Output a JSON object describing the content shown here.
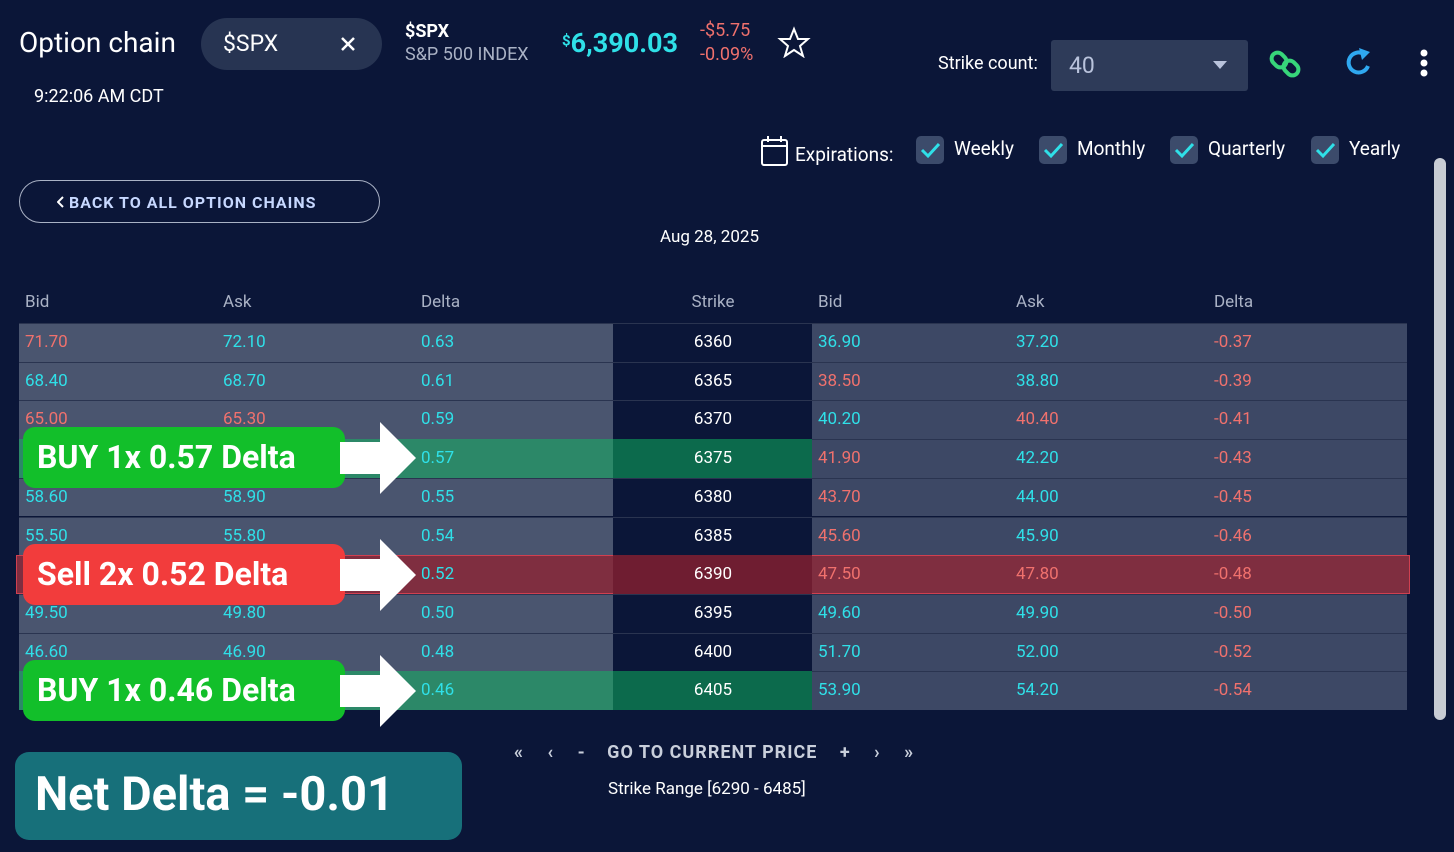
{
  "header": {
    "title": "Option chain",
    "symbol": "$SPX",
    "time": "9:22:06 AM CDT",
    "ticker": "$SPX",
    "name": "S&P 500 INDEX",
    "currency": "$",
    "price": "6,390.03",
    "change": "-$5.75",
    "change_pct": "-0.09%",
    "strike_count_label": "Strike count:",
    "strike_count": "40"
  },
  "expirations": {
    "label": "Expirations:",
    "options": [
      "Weekly",
      "Monthly",
      "Quarterly",
      "Yearly"
    ]
  },
  "back_button": "BACK TO ALL OPTION CHAINS",
  "date": "Aug 28, 2025",
  "table": {
    "columns": [
      "Bid",
      "Ask",
      "Delta",
      "Strike",
      "Bid",
      "Ask",
      "Delta"
    ],
    "rows": [
      {
        "cells": [
          "71.70",
          "72.10",
          "0.63",
          "6360",
          "36.90",
          "37.20",
          "-0.37"
        ],
        "colors": [
          "#f0716d",
          "#2fe0e8",
          "#2fe0e8",
          "#ffffff",
          "#2fe0e8",
          "#2fe0e8",
          "#f0716d"
        ]
      },
      {
        "cells": [
          "68.40",
          "68.70",
          "0.61",
          "6365",
          "38.50",
          "38.80",
          "-0.39"
        ],
        "colors": [
          "#2fe0e8",
          "#2fe0e8",
          "#2fe0e8",
          "#ffffff",
          "#f0716d",
          "#2fe0e8",
          "#f0716d"
        ]
      },
      {
        "cells": [
          "65.00",
          "65.30",
          "0.59",
          "6370",
          "40.20",
          "40.40",
          "-0.41"
        ],
        "colors": [
          "#f0716d",
          "#f0716d",
          "#2fe0e8",
          "#ffffff",
          "#2fe0e8",
          "#f0716d",
          "#f0716d"
        ]
      },
      {
        "cells": [
          null,
          null,
          "0.57",
          "6375",
          "41.90",
          "42.20",
          "-0.43"
        ],
        "colors": [
          "#2fe0e8",
          "#2fe0e8",
          "#2fe0e8",
          "#ffffff",
          "#f0716d",
          "#2fe0e8",
          "#f0716d"
        ],
        "highlight": "buy"
      },
      {
        "cells": [
          "58.60",
          "58.90",
          "0.55",
          "6380",
          "43.70",
          "44.00",
          "-0.45"
        ],
        "colors": [
          "#2fe0e8",
          "#2fe0e8",
          "#2fe0e8",
          "#ffffff",
          "#f0716d",
          "#2fe0e8",
          "#f0716d"
        ]
      },
      {
        "cells": [
          "55.50",
          "55.80",
          "0.54",
          "6385",
          "45.60",
          "45.90",
          "-0.46"
        ],
        "colors": [
          "#2fe0e8",
          "#2fe0e8",
          "#2fe0e8",
          "#ffffff",
          "#f0716d",
          "#2fe0e8",
          "#f0716d"
        ]
      },
      {
        "cells": [
          null,
          null,
          "0.52",
          "6390",
          "47.50",
          "47.80",
          "-0.48"
        ],
        "colors": [
          "#2fe0e8",
          "#2fe0e8",
          "#2fe0e8",
          "#ffffff",
          "#f0716d",
          "#f0716d",
          "#f0716d"
        ],
        "highlight": "sell"
      },
      {
        "cells": [
          "49.50",
          "49.80",
          "0.50",
          "6395",
          "49.60",
          "49.90",
          "-0.50"
        ],
        "colors": [
          "#2fe0e8",
          "#2fe0e8",
          "#2fe0e8",
          "#ffffff",
          "#2fe0e8",
          "#2fe0e8",
          "#f0716d"
        ]
      },
      {
        "cells": [
          "46.60",
          "46.90",
          "0.48",
          "6400",
          "51.70",
          "52.00",
          "-0.52"
        ],
        "colors": [
          "#2fe0e8",
          "#2fe0e8",
          "#2fe0e8",
          "#ffffff",
          "#2fe0e8",
          "#2fe0e8",
          "#f0716d"
        ]
      },
      {
        "cells": [
          null,
          null,
          "0.46",
          "6405",
          "53.90",
          "54.20",
          "-0.54"
        ],
        "colors": [
          "#2fe0e8",
          "#2fe0e8",
          "#2fe0e8",
          "#ffffff",
          "#2fe0e8",
          "#2fe0e8",
          "#f0716d"
        ],
        "highlight": "buy"
      }
    ]
  },
  "callouts": [
    {
      "text": "BUY 1x 0.57 Delta",
      "row": 3,
      "kind": "buy"
    },
    {
      "text": "Sell 2x 0.52 Delta",
      "row": 6,
      "kind": "sell"
    },
    {
      "text": "BUY 1x 0.46 Delta",
      "row": 9,
      "kind": "buy"
    }
  ],
  "net_delta": "Net Delta = -0.01",
  "nav": {
    "first": "«",
    "prev": "‹",
    "minus": "-",
    "current": "GO TO CURRENT PRICE",
    "plus": "+",
    "next": "›",
    "last": "»"
  },
  "strike_range": "Strike Range [6290 - 6485]"
}
